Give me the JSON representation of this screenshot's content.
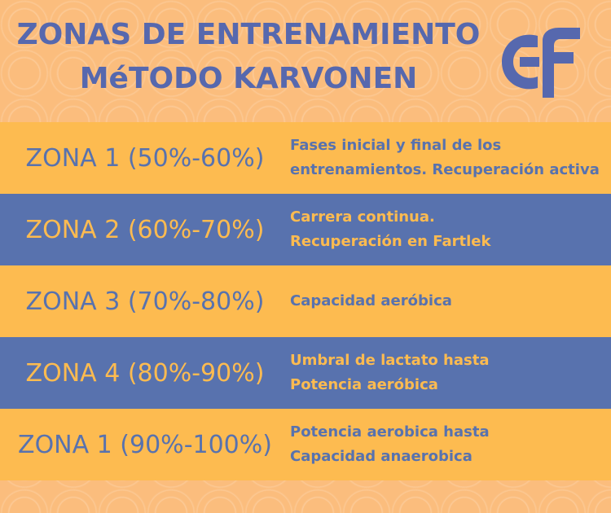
{
  "header": {
    "title_line1": "ZONAS DE ENTRENAMIENTO",
    "title_line2": "MéTODO KARVONEN",
    "logo_text": "ef",
    "title_color": "#5668ae"
  },
  "colors": {
    "background": "#fbbd7d",
    "yellow_row": "#fdbb50",
    "blue_row": "#5872ae"
  },
  "zones": [
    {
      "label": "ZONA 1 (50%-60%)",
      "desc_line1": "Fases inicial y final de los",
      "desc_line2": "entrenamientos. Recuperación activa"
    },
    {
      "label": "ZONA 2 (60%-70%)",
      "desc_line1": "Carrera continua.",
      "desc_line2": "Recuperación en Fartlek"
    },
    {
      "label": "ZONA 3 (70%-80%)",
      "desc_line1": "Capacidad aeróbica",
      "desc_line2": ""
    },
    {
      "label": "ZONA 4 (80%-90%)",
      "desc_line1": "Umbral de lactato hasta",
      "desc_line2": "Potencia aeróbica"
    },
    {
      "label": "ZONA 1 (90%-100%)",
      "desc_line1": "Potencia aerobica hasta",
      "desc_line2": "Capacidad anaerobica"
    }
  ]
}
